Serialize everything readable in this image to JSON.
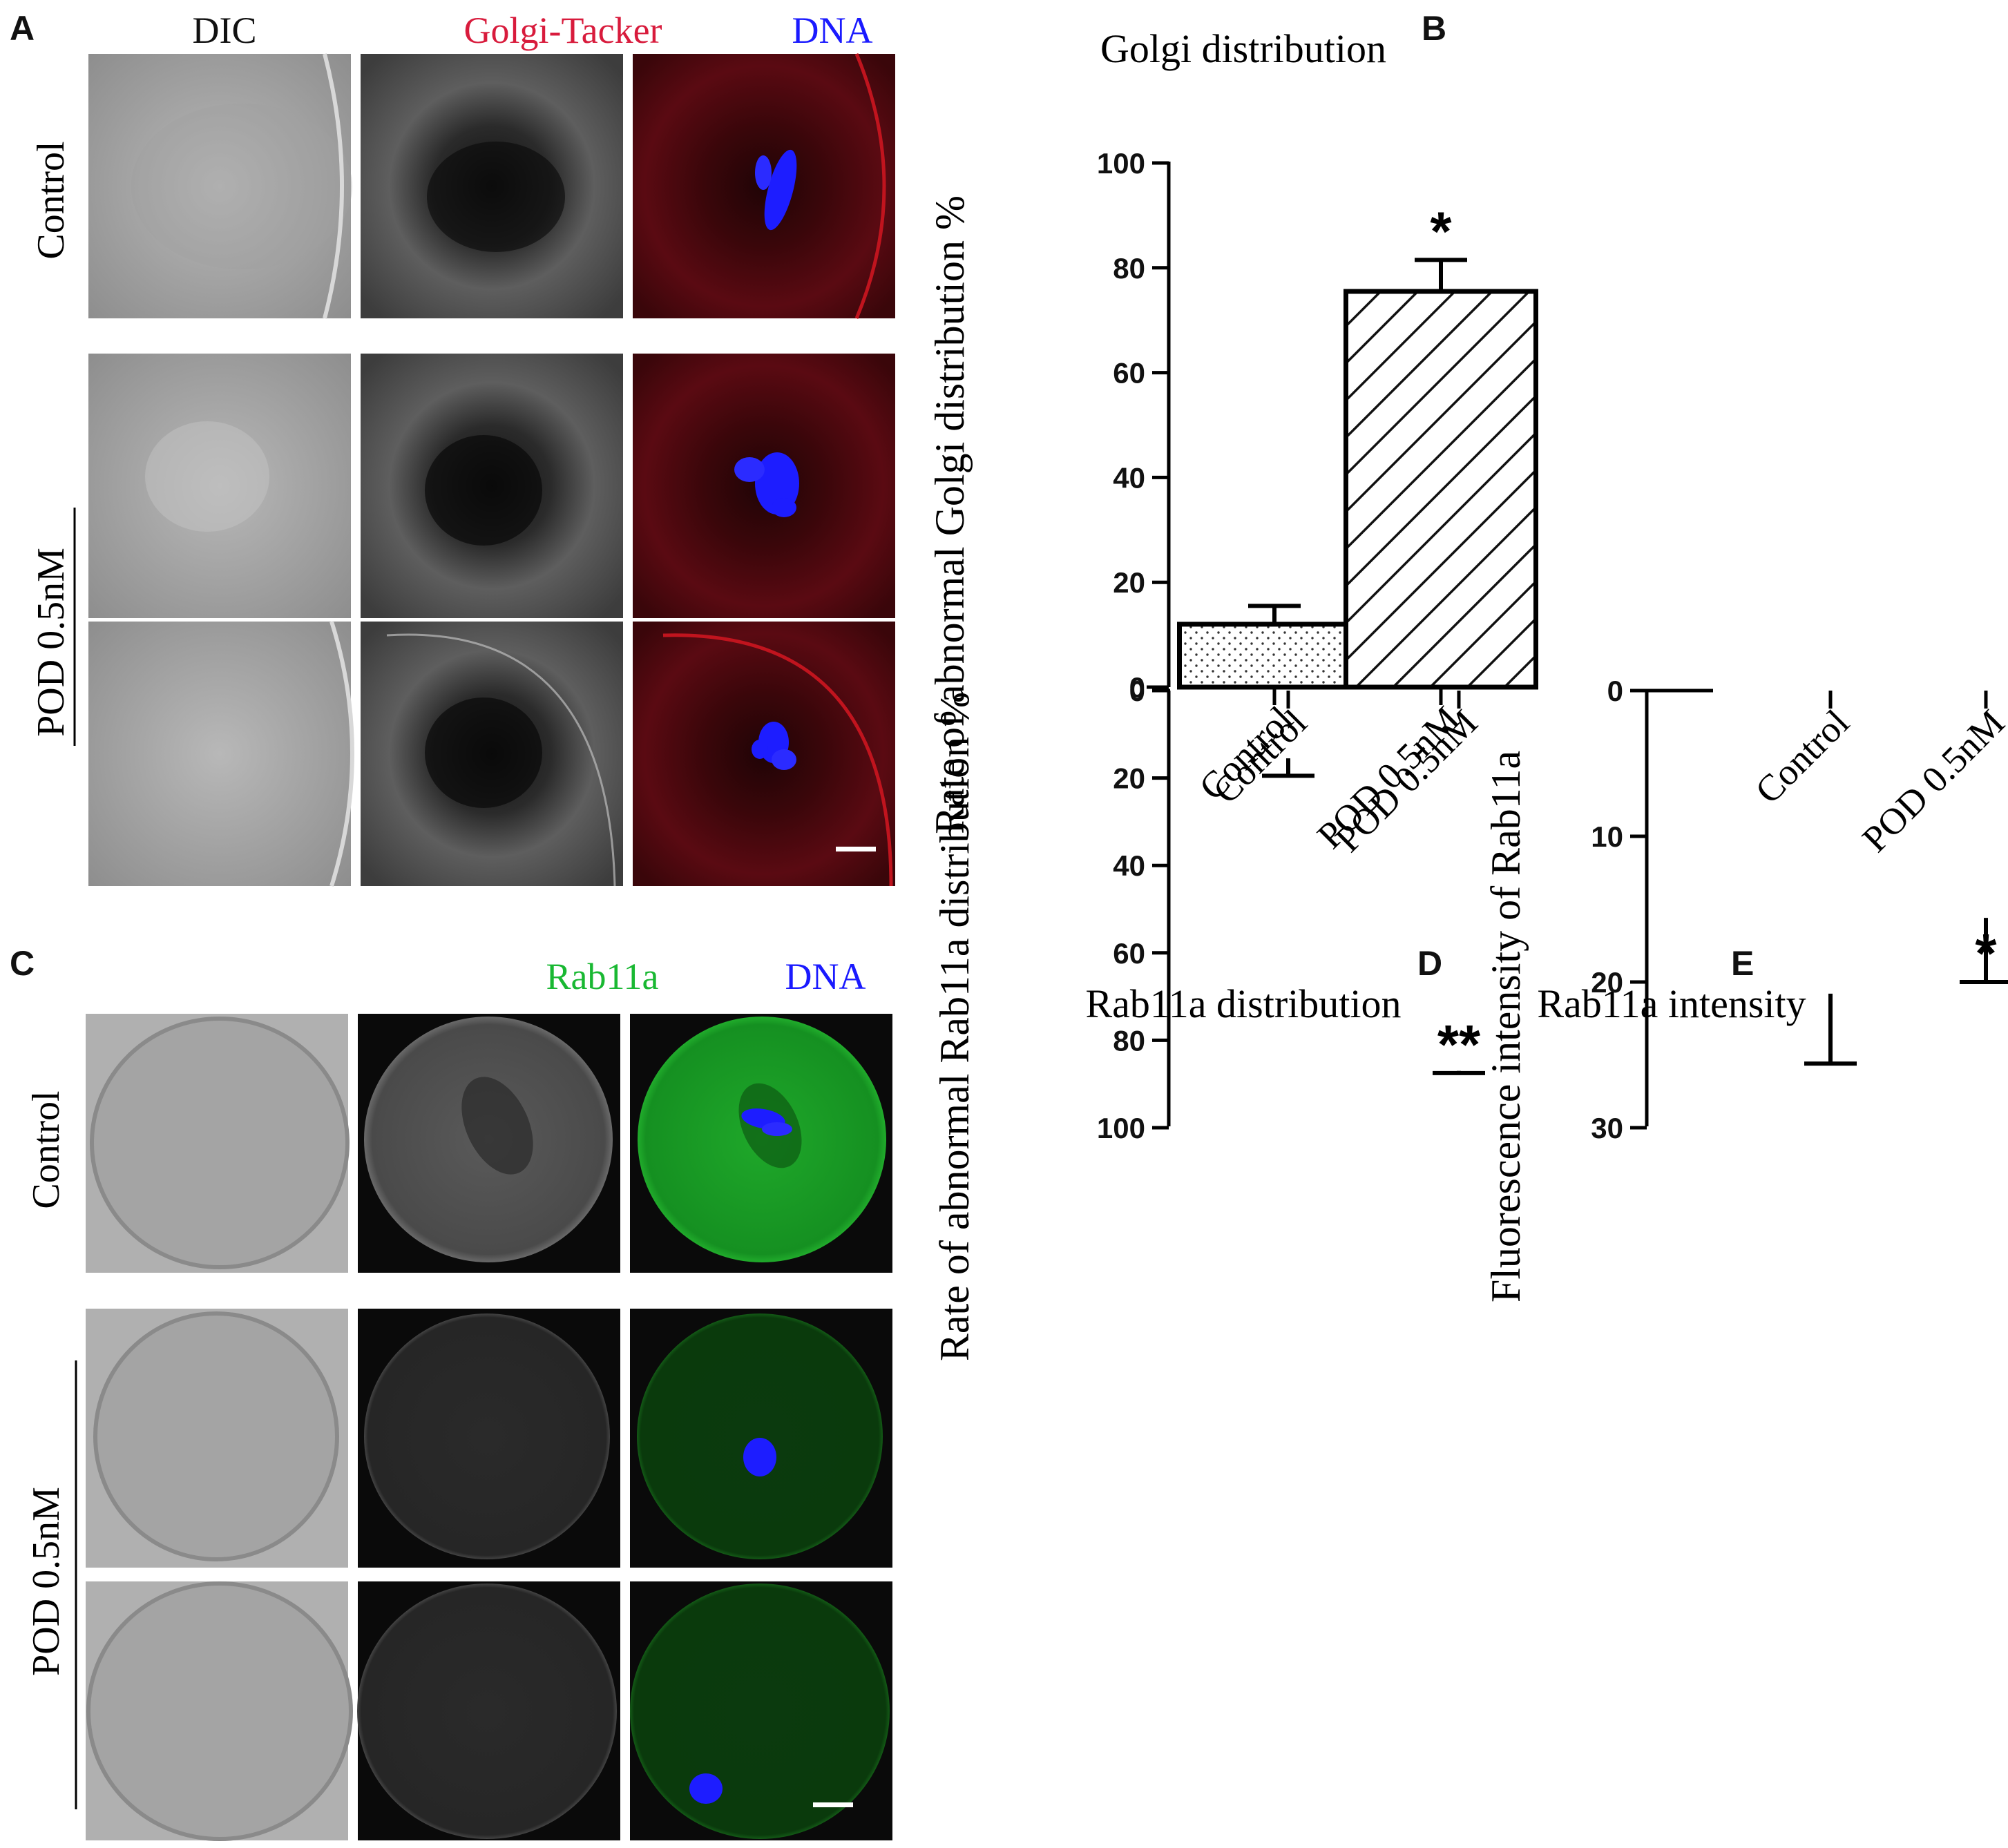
{
  "panels": {
    "a": {
      "letter": "A",
      "columns": [
        "DIC",
        "Golgi-Tacker",
        "DNA"
      ],
      "column_colors": [
        "#111111",
        "#d81b3c",
        "#1a1aff"
      ],
      "rows": [
        "Control",
        "POD 0.5nM"
      ]
    },
    "c": {
      "letter": "C",
      "columns": [
        "",
        "Rab11a",
        "DNA"
      ],
      "column_colors": [
        "#111111",
        "#19b832",
        "#1a1aff"
      ],
      "rows": [
        "Control",
        "POD 0.5nM"
      ]
    }
  },
  "chart_data": [
    {
      "id": "b",
      "letter": "B",
      "type": "bar",
      "title": "Golgi distribution",
      "ylabel": "Rate of abnormal Golgi distribution %",
      "xlabel": "",
      "categories": [
        "Control",
        "POD 0.5nM"
      ],
      "values": [
        12,
        75.5
      ],
      "errors": [
        3.5,
        6
      ],
      "significance": [
        "",
        "*"
      ],
      "ylim": [
        0,
        100
      ],
      "yticks": [
        0,
        20,
        40,
        60,
        80,
        100
      ],
      "fills": [
        "dots",
        "hatch"
      ],
      "grid": false
    },
    {
      "id": "d",
      "letter": "D",
      "type": "bar",
      "title": "Rab11a distribution",
      "ylabel": "Rate of abnormal Rab11a distribution %",
      "xlabel": "",
      "categories": [
        "Control",
        "POD 0.5nM"
      ],
      "values": [
        15.5,
        87
      ],
      "errors": [
        4,
        0.5
      ],
      "significance": [
        "",
        "**"
      ],
      "ylim": [
        0,
        100
      ],
      "yticks": [
        0,
        20,
        40,
        60,
        80,
        100
      ],
      "fills": [
        "dots",
        "hatch"
      ],
      "grid": false
    },
    {
      "id": "e",
      "letter": "E",
      "type": "bar",
      "title": "Rab11a intensity",
      "ylabel": "Fluorescence intensity of Rab11a",
      "xlabel": "",
      "categories": [
        "Control",
        "POD 0.5nM"
      ],
      "values": [
        20.8,
        15.6
      ],
      "errors": [
        4.8,
        4.4
      ],
      "significance": [
        "",
        "*"
      ],
      "ylim": [
        0,
        30
      ],
      "yticks": [
        0,
        10,
        20,
        30
      ],
      "fills": [
        "dots",
        "hatch"
      ],
      "grid": false
    }
  ]
}
